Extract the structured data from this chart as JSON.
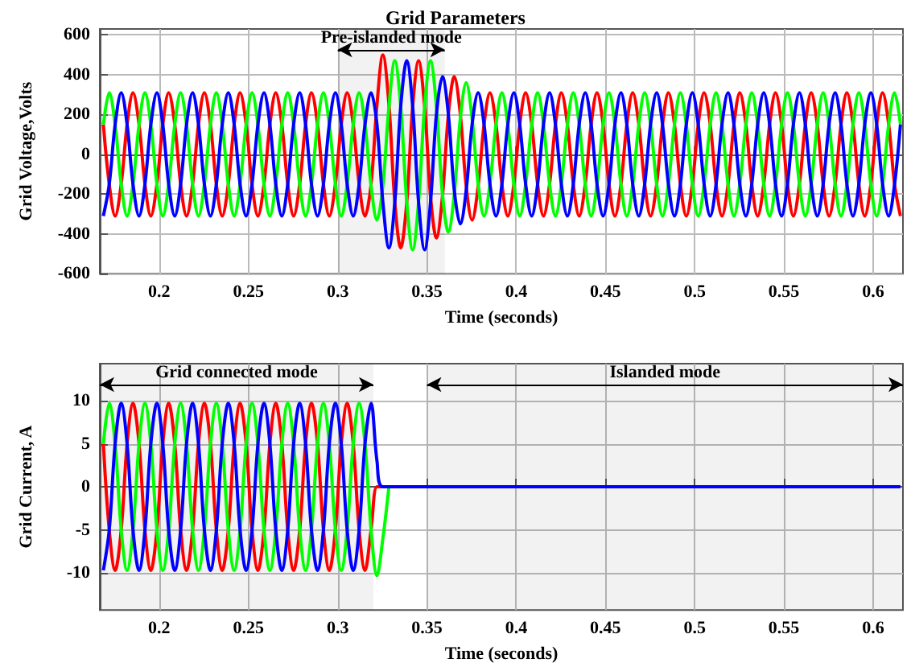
{
  "chart_data": [
    {
      "type": "line",
      "title": "Grid Parameters",
      "xlabel": "Time (seconds)",
      "ylabel": "Grid Voltage,Volts",
      "xlim": [
        0.1667,
        0.6167
      ],
      "xticks": [
        0.2,
        0.25,
        0.3,
        0.35,
        0.4,
        0.45,
        0.5,
        0.55,
        0.6
      ],
      "ylim": [
        -600,
        630
      ],
      "yticks": [
        -600,
        -400,
        -200,
        0,
        200,
        400,
        600
      ],
      "grid": true,
      "bands": [
        {
          "axis": "x",
          "from": 0.3,
          "to": 0.36,
          "label": "Pre-islanded mode"
        }
      ],
      "x": [
        0.1687,
        0.172,
        0.1753,
        0.1787,
        0.182,
        0.1853,
        0.1887,
        0.192,
        0.1953,
        0.1987,
        0.202,
        0.2053,
        0.2087,
        0.212,
        0.2153,
        0.2187,
        0.222,
        0.2253,
        0.2287,
        0.232,
        0.2353,
        0.2387,
        0.242,
        0.2453,
        0.2487,
        0.252,
        0.2553,
        0.2587,
        0.262,
        0.2653,
        0.2687,
        0.272,
        0.2753,
        0.2787,
        0.282,
        0.2853,
        0.2887,
        0.292,
        0.2953,
        0.2987,
        0.302,
        0.3053,
        0.3087,
        0.312,
        0.3153,
        0.3187,
        0.322,
        0.3253,
        0.3287,
        0.332,
        0.3353,
        0.3387,
        0.342,
        0.3453,
        0.3487,
        0.352,
        0.3553,
        0.3587,
        0.362,
        0.3653,
        0.3687,
        0.372,
        0.3753,
        0.3787,
        0.382,
        0.3853,
        0.3887,
        0.392,
        0.3953,
        0.3987,
        0.402,
        0.4053,
        0.4087,
        0.412,
        0.4153,
        0.4187,
        0.422,
        0.4253,
        0.4287,
        0.432,
        0.4353,
        0.4387,
        0.442,
        0.4453,
        0.4487,
        0.452,
        0.4553,
        0.4587,
        0.462,
        0.4653,
        0.4687,
        0.472,
        0.4753,
        0.4787,
        0.482,
        0.4853,
        0.4887,
        0.492,
        0.4953,
        0.4987,
        0.502,
        0.5053,
        0.5087,
        0.512,
        0.5153,
        0.5187,
        0.522,
        0.5253,
        0.5287,
        0.532,
        0.5353,
        0.5387,
        0.542,
        0.5453,
        0.5487,
        0.552,
        0.5553,
        0.5587,
        0.562,
        0.5653,
        0.5687,
        0.572,
        0.5753,
        0.5787,
        0.582,
        0.5853,
        0.5887,
        0.592,
        0.5953,
        0.5987,
        0.602,
        0.6053,
        0.6087,
        0.612,
        0.6153
      ],
      "series": [
        {
          "color": "#ff0000",
          "values": [
            150,
            -150,
            -310,
            -150,
            150,
            310,
            150,
            -150,
            -310,
            -150,
            150,
            310,
            150,
            -150,
            -310,
            -150,
            150,
            310,
            150,
            -150,
            -310,
            -150,
            150,
            310,
            150,
            -150,
            -310,
            -150,
            150,
            310,
            150,
            -150,
            -310,
            -150,
            150,
            310,
            150,
            -150,
            -310,
            -150,
            150,
            310,
            150,
            -150,
            -310,
            -150,
            250,
            500,
            250,
            -240,
            -470,
            -240,
            240,
            470,
            240,
            -210,
            -420,
            -210,
            200,
            390,
            200,
            -160,
            -330,
            -160,
            150,
            310,
            150,
            -150,
            -310,
            -150,
            150,
            310,
            150,
            -150,
            -310,
            -150,
            150,
            310,
            150,
            -150,
            -310,
            -150,
            150,
            310,
            150,
            -150,
            -310,
            -150,
            150,
            310,
            150,
            -150,
            -310,
            -150,
            150,
            310,
            150,
            -150,
            -310,
            -150,
            150,
            310,
            150,
            -150,
            -310,
            -150,
            150,
            310,
            150,
            -150,
            -310,
            -150,
            150,
            310,
            150,
            -150,
            -310,
            -150,
            150,
            310,
            150,
            -150,
            -310,
            -150,
            150,
            310,
            150,
            -150,
            -310,
            -150,
            150,
            310,
            150,
            -150,
            -310
          ]
        },
        {
          "color": "#00ff00",
          "values": [
            150,
            310,
            150,
            -150,
            -310,
            -150,
            150,
            310,
            150,
            -150,
            -310,
            -150,
            150,
            310,
            150,
            -150,
            -310,
            -150,
            150,
            310,
            150,
            -150,
            -310,
            -150,
            150,
            310,
            150,
            -150,
            -310,
            -150,
            150,
            310,
            150,
            -150,
            -310,
            -150,
            150,
            310,
            150,
            -150,
            -310,
            -150,
            150,
            310,
            150,
            -160,
            -330,
            -160,
            240,
            470,
            240,
            -240,
            -480,
            -240,
            240,
            470,
            240,
            -200,
            -390,
            -200,
            180,
            360,
            180,
            -150,
            -310,
            -150,
            150,
            310,
            150,
            -150,
            -310,
            -150,
            150,
            310,
            150,
            -150,
            -310,
            -150,
            150,
            310,
            150,
            -150,
            -310,
            -150,
            150,
            310,
            150,
            -150,
            -310,
            -150,
            150,
            310,
            150,
            -150,
            -310,
            -150,
            150,
            310,
            150,
            -150,
            -310,
            -150,
            150,
            310,
            150,
            -150,
            -310,
            -150,
            150,
            310,
            150,
            -150,
            -310,
            -150,
            150,
            310,
            150,
            -150,
            -310,
            -150,
            150,
            310,
            150,
            -150,
            -310,
            -150,
            150,
            310,
            150,
            -150,
            -310,
            -150,
            150,
            310,
            150
          ]
        },
        {
          "color": "#0000ff",
          "values": [
            -310,
            -150,
            150,
            310,
            150,
            -150,
            -310,
            -150,
            150,
            310,
            150,
            -150,
            -310,
            -150,
            150,
            310,
            150,
            -150,
            -310,
            -150,
            150,
            310,
            150,
            -150,
            -310,
            -150,
            150,
            310,
            150,
            -150,
            -310,
            -150,
            150,
            310,
            150,
            -150,
            -310,
            -150,
            150,
            310,
            150,
            -150,
            -310,
            -150,
            150,
            310,
            150,
            -240,
            -470,
            -240,
            240,
            470,
            240,
            -240,
            -480,
            -240,
            200,
            390,
            200,
            -180,
            -350,
            -180,
            150,
            310,
            150,
            -150,
            -310,
            -150,
            150,
            310,
            150,
            -150,
            -310,
            -150,
            150,
            310,
            150,
            -150,
            -310,
            -150,
            150,
            310,
            150,
            -150,
            -310,
            -150,
            150,
            310,
            150,
            -150,
            -310,
            -150,
            150,
            310,
            150,
            -150,
            -310,
            -150,
            150,
            310,
            150,
            -150,
            -310,
            -150,
            150,
            310,
            150,
            -150,
            -310,
            -150,
            150,
            310,
            150,
            -150,
            -310,
            -150,
            150,
            310,
            150,
            -150,
            -310,
            -150,
            150,
            310,
            150,
            -150,
            -310,
            -150,
            150,
            310,
            150,
            -150,
            -310,
            -150,
            150
          ]
        }
      ]
    },
    {
      "type": "line",
      "xlabel": "Time (seconds)",
      "ylabel": "Grid Current, A",
      "xlim": [
        0.1667,
        0.6167
      ],
      "xticks": [
        0.2,
        0.25,
        0.3,
        0.35,
        0.4,
        0.45,
        0.5,
        0.55,
        0.6
      ],
      "ylim": [
        -14.3,
        14.3
      ],
      "yticks": [
        -10,
        -5,
        0,
        5,
        10
      ],
      "grid": true,
      "bands": [
        {
          "axis": "x",
          "from": 0.1667,
          "to": 0.32,
          "label": "Grid connected mode"
        },
        {
          "axis": "x",
          "from": 0.35,
          "to": 0.6167,
          "label": "Islanded mode"
        }
      ],
      "series": [
        {
          "color": "#ff0000",
          "x": [
            0.1687,
            0.172,
            0.1753,
            0.1787,
            0.182,
            0.1853,
            0.1887,
            0.192,
            0.1953,
            0.1987,
            0.202,
            0.2053,
            0.2087,
            0.212,
            0.2153,
            0.2187,
            0.222,
            0.2253,
            0.2287,
            0.232,
            0.2353,
            0.2387,
            0.242,
            0.2453,
            0.2487,
            0.252,
            0.2553,
            0.2587,
            0.262,
            0.2653,
            0.2687,
            0.272,
            0.2753,
            0.2787,
            0.282,
            0.2853,
            0.2887,
            0.292,
            0.2953,
            0.2987,
            0.302,
            0.3053,
            0.3087,
            0.312,
            0.3153,
            0.3187,
            0.322,
            0.3253
          ],
          "values": [
            5,
            -5,
            -9.7,
            -5,
            5,
            9.7,
            5,
            -5,
            -9.7,
            -5,
            5,
            9.7,
            5,
            -5,
            -9.7,
            -5,
            5,
            9.7,
            5,
            -5,
            -9.7,
            -5,
            5,
            9.7,
            5,
            -5,
            -9.7,
            -5,
            5,
            9.7,
            5,
            -5,
            -9.7,
            -5,
            5,
            9.7,
            5,
            -5,
            -9.7,
            -5,
            5,
            9.7,
            5,
            -5,
            -9.7,
            -5,
            0,
            0
          ]
        },
        {
          "color": "#00ff00",
          "x": [
            0.1687,
            0.172,
            0.1753,
            0.1787,
            0.182,
            0.1853,
            0.1887,
            0.192,
            0.1953,
            0.1987,
            0.202,
            0.2053,
            0.2087,
            0.212,
            0.2153,
            0.2187,
            0.222,
            0.2253,
            0.2287,
            0.232,
            0.2353,
            0.2387,
            0.242,
            0.2453,
            0.2487,
            0.252,
            0.2553,
            0.2587,
            0.262,
            0.2653,
            0.2687,
            0.272,
            0.2753,
            0.2787,
            0.282,
            0.2853,
            0.2887,
            0.292,
            0.2953,
            0.2987,
            0.302,
            0.3053,
            0.3087,
            0.312,
            0.3153,
            0.3187,
            0.322,
            0.3253,
            0.3287
          ],
          "values": [
            5,
            9.7,
            5,
            -5,
            -9.7,
            -5,
            5,
            9.7,
            5,
            -5,
            -9.7,
            -5,
            5,
            9.7,
            5,
            -5,
            -9.7,
            -5,
            5,
            9.7,
            5,
            -5,
            -9.7,
            -5,
            5,
            9.7,
            5,
            -5,
            -9.7,
            -5,
            5,
            9.7,
            5,
            -5,
            -9.7,
            -5,
            5,
            9.7,
            5,
            -5,
            -9.7,
            -5,
            5,
            9.7,
            5,
            -5,
            -10.3,
            -6,
            0
          ]
        },
        {
          "color": "#0000ff",
          "x": [
            0.1687,
            0.172,
            0.1753,
            0.1787,
            0.182,
            0.1853,
            0.1887,
            0.192,
            0.1953,
            0.1987,
            0.202,
            0.2053,
            0.2087,
            0.212,
            0.2153,
            0.2187,
            0.222,
            0.2253,
            0.2287,
            0.232,
            0.2353,
            0.2387,
            0.242,
            0.2453,
            0.2487,
            0.252,
            0.2553,
            0.2587,
            0.262,
            0.2653,
            0.2687,
            0.272,
            0.2753,
            0.2787,
            0.282,
            0.2853,
            0.2887,
            0.292,
            0.2953,
            0.2987,
            0.302,
            0.3053,
            0.3087,
            0.312,
            0.3153,
            0.3187,
            0.322,
            0.3253,
            0.6153
          ],
          "values": [
            -9.7,
            -5,
            5,
            9.7,
            5,
            -5,
            -9.7,
            -5,
            5,
            9.7,
            5,
            -5,
            -9.7,
            -5,
            5,
            9.7,
            5,
            -5,
            -9.7,
            -5,
            5,
            9.7,
            5,
            -5,
            -9.7,
            -5,
            5,
            9.7,
            5,
            -5,
            -9.7,
            -5,
            5,
            9.7,
            5,
            -5,
            -9.7,
            -5,
            5,
            9.7,
            5,
            -5,
            -9.7,
            -5,
            5,
            9.7,
            3,
            0,
            0
          ]
        }
      ]
    }
  ]
}
